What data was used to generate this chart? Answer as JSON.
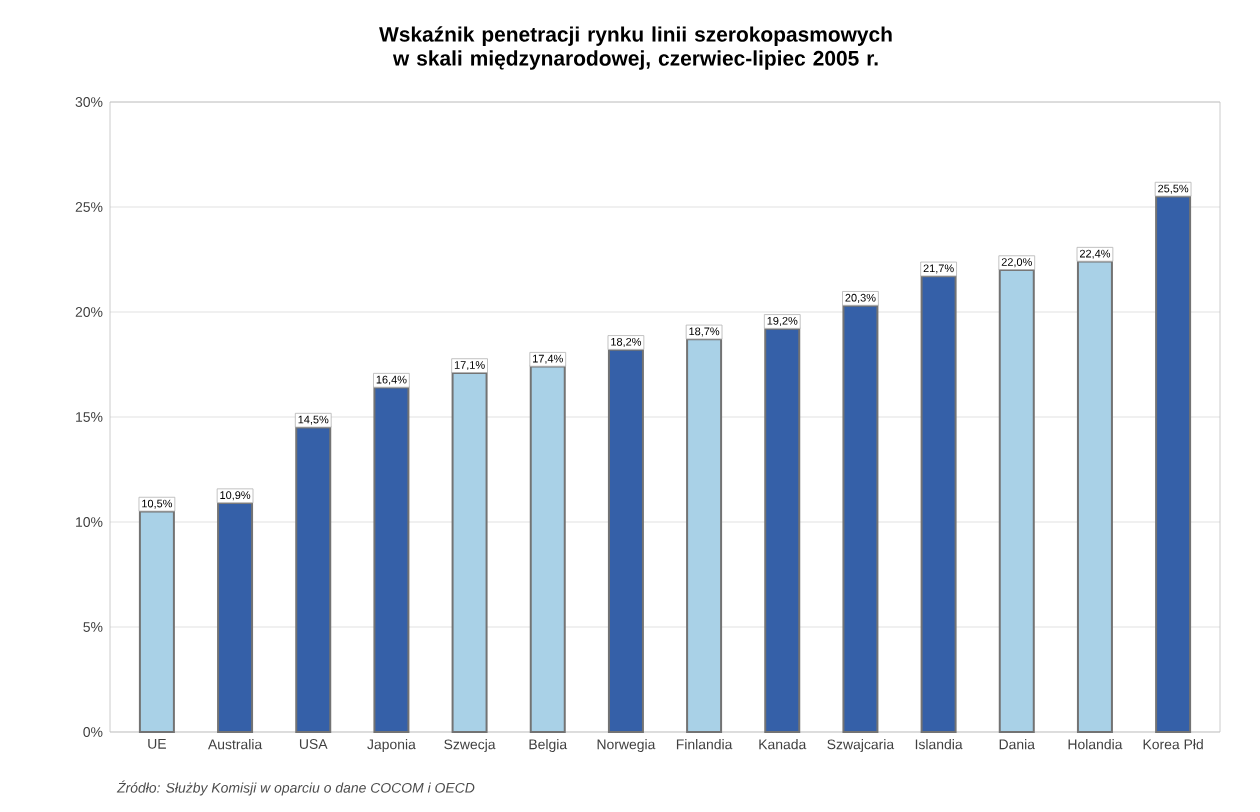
{
  "chart_data": {
    "type": "bar",
    "title": "Wskaźnik penetracji rynku linii szerokopasmowych w skali międzynarodowej, czerwiec-lipiec 2005 r.",
    "categories": [
      "UE",
      "Australia",
      "USA",
      "Japonia",
      "Szwecja",
      "Belgia",
      "Norwegia",
      "Finlandia",
      "Kanada",
      "Szwajcaria",
      "Islandia",
      "Dania",
      "Holandia",
      "Korea Płd"
    ],
    "values": [
      10.5,
      10.9,
      14.5,
      16.4,
      17.1,
      17.4,
      18.2,
      18.7,
      19.2,
      20.3,
      21.7,
      22.0,
      22.4,
      25.5
    ],
    "colors": [
      "#a9d1e7",
      "#3560a8",
      "#3560a8",
      "#3560a8",
      "#a9d1e7",
      "#a9d1e7",
      "#3560a8",
      "#a9d1e7",
      "#3560a8",
      "#3560a8",
      "#3560a8",
      "#a9d1e7",
      "#a9d1e7",
      "#3560a8"
    ],
    "value_labels": [
      "10,5%",
      "10,9%",
      "14,5%",
      "16,4%",
      "17,1%",
      "17,4%",
      "18,2%",
      "18,7%",
      "19,2%",
      "20,3%",
      "21,7%",
      "22,0%",
      "22,4%",
      "25,5%"
    ],
    "ylim": [
      0,
      30
    ],
    "yticks": [
      {
        "value": 0,
        "label": "0%"
      },
      {
        "value": 5,
        "label": "5%"
      },
      {
        "value": 10,
        "label": "10%"
      },
      {
        "value": 15,
        "label": "15%"
      },
      {
        "value": 20,
        "label": "20%"
      },
      {
        "value": 25,
        "label": "25%"
      },
      {
        "value": 30,
        "label": "30%"
      }
    ],
    "grid": "y",
    "annotations": [
      "Źródło: Służby Komisji w oparciu o dane COCOM i OECD"
    ]
  }
}
